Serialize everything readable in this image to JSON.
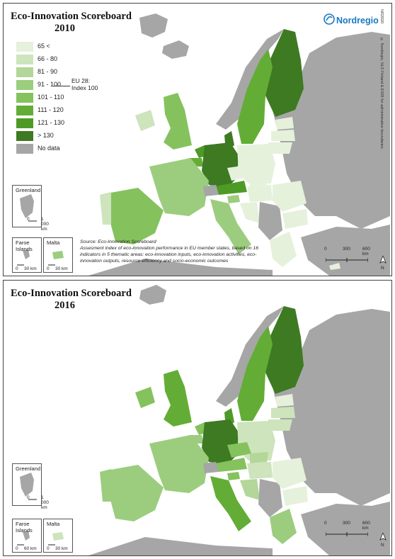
{
  "brand": "Nordregio",
  "map_id": "NR2020",
  "copyright": "© Nordregio, NLS Finland & ESRI for administrative boundaries",
  "colors": {
    "c1": "#e6f1dc",
    "c2": "#cde4bc",
    "c3": "#b3d699",
    "c4": "#9ccd7e",
    "c5": "#85c25e",
    "c6": "#63ad36",
    "c7": "#4e9a26",
    "c8": "#3d7a22",
    "nodata": "#a6a6a6",
    "sea": "#ffffff"
  },
  "legend": [
    {
      "label": "65 <",
      "color": "#e6f1dc"
    },
    {
      "label": "66 - 80",
      "color": "#cde4bc"
    },
    {
      "label": "81 - 90",
      "color": "#b3d699"
    },
    {
      "label": "91 - 100",
      "color": "#9ccd7e"
    },
    {
      "label": "101 - 110",
      "color": "#85c25e"
    },
    {
      "label": "111 - 120",
      "color": "#63ad36"
    },
    {
      "label": "121 - 130",
      "color": "#4e9a26"
    },
    {
      "label": "> 130",
      "color": "#3d7a22"
    },
    {
      "label": "No data",
      "color": "#a6a6a6"
    }
  ],
  "eu_note": {
    "line1": "EU 28:",
    "line2": "Index 100"
  },
  "panel_2010": {
    "title": "Eco-Innovation Scoreboard",
    "year": "2010",
    "source": "Source: Eco-Innovation Scoreboard",
    "description": "Assesment index of eco-innovation performance in EU member states, based on 16 indicators in 5 thematic areas: eco-innovation inputs, eco-innovation activities, eco-innovation outputs, resource efficiency and socio-economic outcomes"
  },
  "panel_2016": {
    "title": "Eco-Innovation Scoreboard",
    "year": "2016"
  },
  "insets": {
    "greenland": "Greenland",
    "greenland_scale": "1 000 km",
    "faroe": "Faroe Islands",
    "faroe_scale_2010": "30 km",
    "faroe_scale_2016": "60 km",
    "malta": "Malta",
    "malta_scale": "30 km",
    "zero": "0"
  },
  "scale": {
    "zero": "0",
    "mid": "300",
    "end": "600 km"
  },
  "north": "N"
}
